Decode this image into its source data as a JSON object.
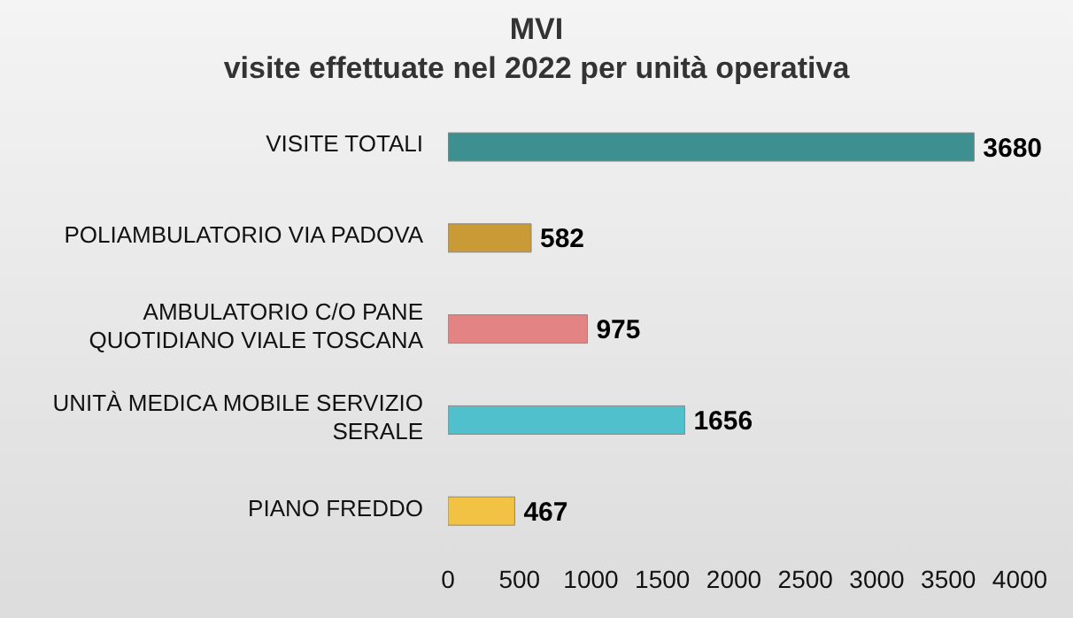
{
  "chart_data": {
    "type": "bar",
    "orientation": "horizontal",
    "title": "MVI",
    "subtitle": "visite effettuate nel 2022 per unità operativa",
    "categories": [
      "VISITE TOTALI",
      "POLIAMBULATORIO VIA PADOVA",
      "AMBULATORIO C/O PANE QUOTIDIANO VIALE TOSCANA",
      "UNITÀ MEDICA MOBILE SERVIZIO SERALE",
      "PIANO FREDDO"
    ],
    "values": [
      3680,
      582,
      975,
      1656,
      467
    ],
    "colors": [
      "#3e8f8f",
      "#c99a36",
      "#e38383",
      "#4fc0cc",
      "#f2c244"
    ],
    "xlim": [
      0,
      4000
    ],
    "xticks": [
      0,
      500,
      1000,
      1500,
      2000,
      2500,
      3000,
      3500,
      4000
    ],
    "data_labels": true,
    "grid": false
  }
}
